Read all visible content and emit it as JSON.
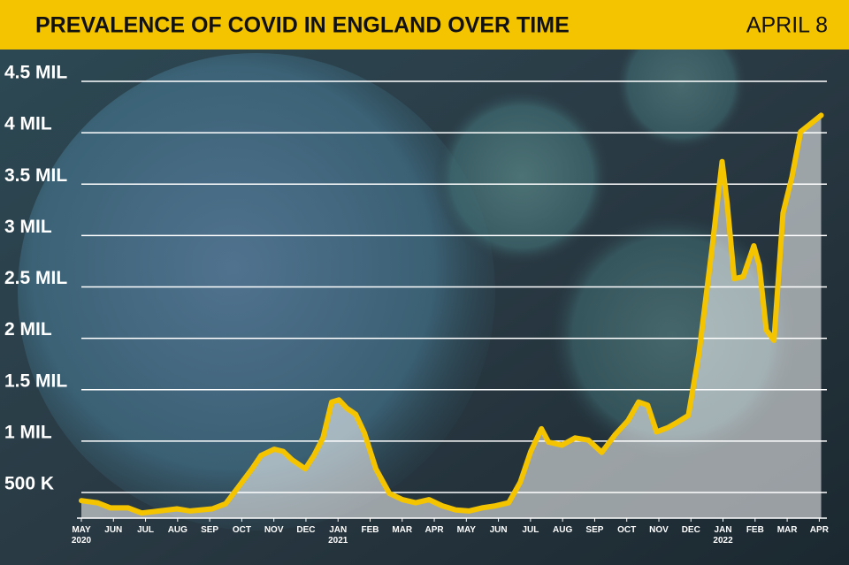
{
  "chart_data": {
    "type": "line",
    "title": "PREVALENCE OF COVID IN ENGLAND OVER TIME",
    "subtitle": "APRIL 8",
    "color": "#f5c400",
    "grid": true,
    "x": [
      0,
      0.5,
      0.91,
      1.46,
      1.88,
      2.43,
      2.98,
      3.39,
      4.08,
      4.5,
      4.91,
      5.32,
      5.6,
      6.01,
      6.29,
      6.56,
      6.98,
      7.25,
      7.53,
      7.8,
      8.03,
      8.27,
      8.55,
      8.82,
      9.18,
      9.6,
      10.01,
      10.42,
      10.84,
      11.25,
      11.67,
      12.08,
      12.49,
      12.91,
      13.32,
      13.68,
      14.01,
      14.34,
      14.56,
      14.98,
      15.39,
      15.8,
      16.22,
      16.63,
      17.04,
      17.37,
      17.65,
      17.93,
      18.28,
      18.56,
      18.92,
      19.25,
      19.66,
      19.97,
      20.13,
      20.35,
      20.63,
      20.96,
      21.13,
      21.35,
      21.59,
      21.87,
      22.15,
      22.42,
      22.7,
      23.06
    ],
    "values": [
      420000,
      400000,
      350000,
      350000,
      300000,
      320000,
      340000,
      320000,
      340000,
      390000,
      560000,
      730000,
      860000,
      920000,
      900000,
      820000,
      730000,
      860000,
      1030000,
      1380000,
      1400000,
      1320000,
      1260000,
      1080000,
      730000,
      490000,
      430000,
      400000,
      430000,
      370000,
      330000,
      320000,
      350000,
      370000,
      400000,
      600000,
      900000,
      1120000,
      990000,
      960000,
      1030000,
      1010000,
      890000,
      1060000,
      1200000,
      1380000,
      1350000,
      1090000,
      1130000,
      1180000,
      1250000,
      1850000,
      2880000,
      3720000,
      3310000,
      2580000,
      2600000,
      2900000,
      2710000,
      2080000,
      1980000,
      3220000,
      3570000,
      4010000,
      4080000,
      4170000
    ],
    "xlim": [
      0,
      23.1
    ],
    "xticks": [
      {
        "value": 0,
        "label": "MAY 2020"
      },
      {
        "value": 1,
        "label": "JUN"
      },
      {
        "value": 2,
        "label": "JUL"
      },
      {
        "value": 3,
        "label": "AUG"
      },
      {
        "value": 4,
        "label": "SEP"
      },
      {
        "value": 5,
        "label": "OCT"
      },
      {
        "value": 6,
        "label": "NOV"
      },
      {
        "value": 7,
        "label": "DEC"
      },
      {
        "value": 8,
        "label": "JAN 2021"
      },
      {
        "value": 9,
        "label": "FEB"
      },
      {
        "value": 10,
        "label": "MAR"
      },
      {
        "value": 11,
        "label": "APR"
      },
      {
        "value": 12,
        "label": "MAY"
      },
      {
        "value": 13,
        "label": "JUN"
      },
      {
        "value": 14,
        "label": "JUL"
      },
      {
        "value": 15,
        "label": "AUG"
      },
      {
        "value": 16,
        "label": "SEP"
      },
      {
        "value": 17,
        "label": "OCT"
      },
      {
        "value": 18,
        "label": "NOV"
      },
      {
        "value": 19,
        "label": "DEC"
      },
      {
        "value": 20,
        "label": "JAN 2022"
      },
      {
        "value": 21,
        "label": "FEB"
      },
      {
        "value": 22,
        "label": "MAR"
      },
      {
        "value": 23,
        "label": "APR"
      }
    ],
    "ylim": [
      250000,
      4750000
    ],
    "yticks": [
      {
        "value": 500000,
        "label": "500 K"
      },
      {
        "value": 1000000,
        "label": "1 MIL"
      },
      {
        "value": 1500000,
        "label": "1.5 MIL"
      },
      {
        "value": 2000000,
        "label": "2 MIL"
      },
      {
        "value": 2500000,
        "label": "2.5 MIL"
      },
      {
        "value": 3000000,
        "label": "3 MIL"
      },
      {
        "value": 3500000,
        "label": "3.5 MIL"
      },
      {
        "value": 4000000,
        "label": "4 MIL"
      },
      {
        "value": 4500000,
        "label": "4.5 MIL"
      }
    ]
  }
}
